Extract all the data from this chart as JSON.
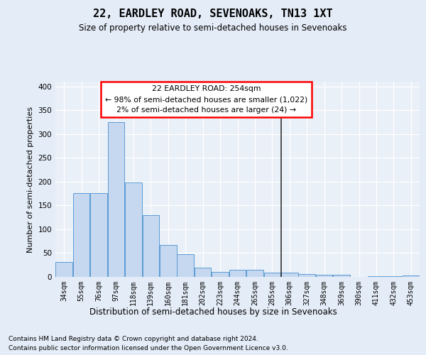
{
  "title_line1": "22, EARDLEY ROAD, SEVENOAKS, TN13 1XT",
  "title_line2": "Size of property relative to semi-detached houses in Sevenoaks",
  "xlabel": "Distribution of semi-detached houses by size in Sevenoaks",
  "ylabel": "Number of semi-detached properties",
  "categories": [
    "34sqm",
    "55sqm",
    "76sqm",
    "97sqm",
    "118sqm",
    "139sqm",
    "160sqm",
    "181sqm",
    "202sqm",
    "223sqm",
    "244sqm",
    "265sqm",
    "285sqm",
    "306sqm",
    "327sqm",
    "348sqm",
    "369sqm",
    "390sqm",
    "411sqm",
    "432sqm",
    "453sqm"
  ],
  "values": [
    31,
    176,
    176,
    325,
    199,
    130,
    67,
    48,
    20,
    11,
    15,
    15,
    9,
    9,
    6,
    4,
    4,
    0,
    2,
    2,
    3
  ],
  "bar_color": "#c5d8f0",
  "bar_edge_color": "#5b9bd5",
  "vline_x": 12.5,
  "vline_color": "#222222",
  "annotation_title": "22 EARDLEY ROAD: 254sqm",
  "annotation_line1": "← 98% of semi-detached houses are smaller (1,022)",
  "annotation_line2": "2% of semi-detached houses are larger (24) →",
  "footnote1": "Contains HM Land Registry data © Crown copyright and database right 2024.",
  "footnote2": "Contains public sector information licensed under the Open Government Licence v3.0.",
  "bg_color": "#e4ecf7",
  "plot_bg_color": "#eaf0f8",
  "ylim": [
    0,
    410
  ],
  "yticks": [
    0,
    50,
    100,
    150,
    200,
    250,
    300,
    350,
    400
  ],
  "title_fontsize": 11,
  "subtitle_fontsize": 8.5,
  "ylabel_fontsize": 8,
  "tick_fontsize": 7,
  "annot_fontsize": 7.8,
  "footnote_fontsize": 6.5
}
